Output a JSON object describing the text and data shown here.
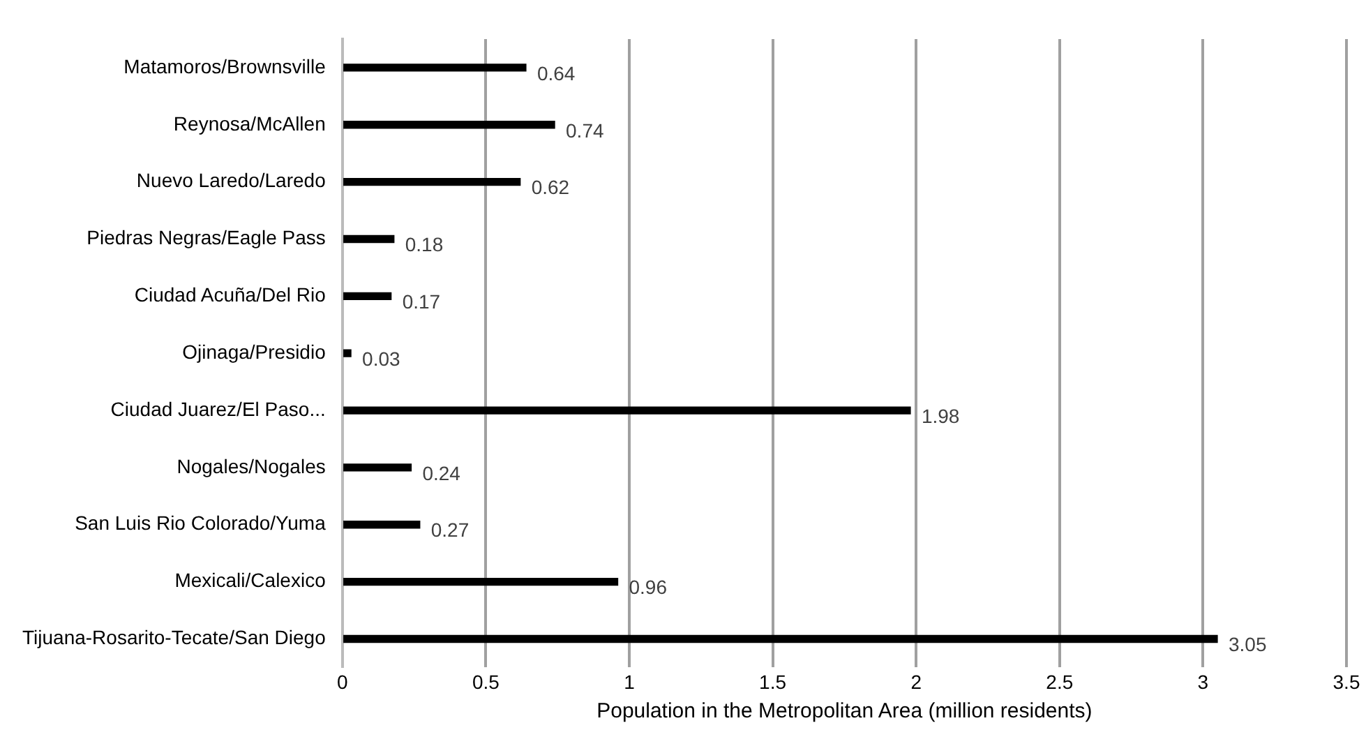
{
  "chart_data": {
    "type": "bar",
    "orientation": "horizontal",
    "categories": [
      "Matamoros/Brownsville",
      "Reynosa/McAllen",
      "Nuevo Laredo/Laredo",
      "Piedras Negras/Eagle Pass",
      "Ciudad Acuña/Del Rio",
      "Ojinaga/Presidio",
      "Ciudad Juarez/El Paso...",
      "Nogales/Nogales",
      "San Luis Rio Colorado/Yuma",
      "Mexicali/Calexico",
      "Tijuana-Rosarito-Tecate/San Diego"
    ],
    "values": [
      0.64,
      0.74,
      0.62,
      0.18,
      0.17,
      0.03,
      1.98,
      0.24,
      0.27,
      0.96,
      3.05
    ],
    "color": "#000000",
    "xlabel": "Population in the Metropolitan Area (million residents)",
    "xlim": [
      0,
      3.5
    ],
    "xticks": [
      0,
      0.5,
      1,
      1.5,
      2,
      2.5,
      3,
      3.5
    ],
    "grid": "x",
    "legend": false,
    "data_labels": true
  }
}
